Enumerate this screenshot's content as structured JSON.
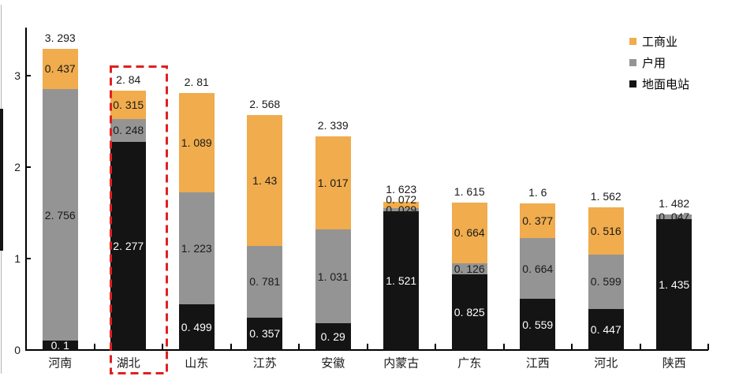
{
  "chart_data": {
    "type": "bar",
    "stacked": true,
    "title": "",
    "xlabel": "",
    "ylabel": "",
    "categories": [
      "河南",
      "湖北",
      "山东",
      "江苏",
      "安徽",
      "内蒙古",
      "广东",
      "江西",
      "河北",
      "陕西"
    ],
    "series": [
      {
        "name": "地面电站",
        "color": "#141414",
        "label_color": "#ffffff",
        "values": [
          0.1,
          2.277,
          0.499,
          0.357,
          0.29,
          1.521,
          0.825,
          0.559,
          0.447,
          1.435
        ]
      },
      {
        "name": "户用",
        "color": "#949494",
        "label_color": "#1a1a1a",
        "values": [
          2.756,
          0.248,
          1.223,
          0.781,
          1.031,
          0.029,
          0.126,
          0.664,
          0.599,
          0.047
        ]
      },
      {
        "name": "工商业",
        "color": "#F0AC4D",
        "label_color": "#1a1a1a",
        "values": [
          0.437,
          0.315,
          1.089,
          1.43,
          1.017,
          0.072,
          0.664,
          0.377,
          0.516,
          0
        ]
      }
    ],
    "totals": [
      3.293,
      2.84,
      2.81,
      2.568,
      2.339,
      1.623,
      1.615,
      1.6,
      1.562,
      1.482
    ],
    "yticks": [
      0,
      1,
      2,
      3
    ],
    "ylim": [
      0,
      3.52
    ],
    "grid": false,
    "legend_position": "top-right",
    "legend_order_top_to_bottom": [
      "工商业",
      "户用",
      "地面电站"
    ],
    "value_label_format": "decimal point rendered with trailing space, e.g. 3. 293",
    "highlight": {
      "category": "湖北",
      "style": "red dashed box",
      "color": "#E02020"
    }
  },
  "colors": {
    "background": "#ffffff",
    "axis": "#000000",
    "highlight_red": "#E02020",
    "bar_orange": "#F0AC4D",
    "bar_gray": "#949494",
    "bar_black": "#141414"
  }
}
